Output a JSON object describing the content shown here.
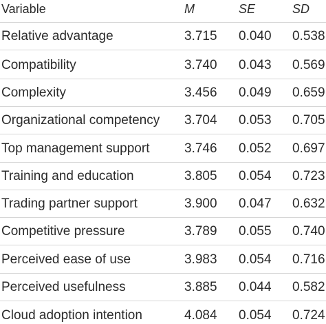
{
  "table": {
    "headers": {
      "variable": "Variable",
      "m": "M",
      "se": "SE",
      "sd": "SD"
    },
    "rows": [
      {
        "variable": "Relative advantage",
        "m": "3.715",
        "se": "0.040",
        "sd": "0.538"
      },
      {
        "variable": "Compatibility",
        "m": "3.740",
        "se": "0.043",
        "sd": "0.569"
      },
      {
        "variable": "Complexity",
        "m": "3.456",
        "se": "0.049",
        "sd": "0.659"
      },
      {
        "variable": "Organizational competency",
        "m": "3.704",
        "se": "0.053",
        "sd": "0.705"
      },
      {
        "variable": "Top management support",
        "m": "3.746",
        "se": "0.052",
        "sd": "0.697"
      },
      {
        "variable": "Training and education",
        "m": "3.805",
        "se": "0.054",
        "sd": "0.723"
      },
      {
        "variable": "Trading partner support",
        "m": "3.900",
        "se": "0.047",
        "sd": "0.632"
      },
      {
        "variable": "Competitive pressure",
        "m": "3.789",
        "se": "0.055",
        "sd": "0.740"
      },
      {
        "variable": "Perceived ease of use",
        "m": "3.983",
        "se": "0.054",
        "sd": "0.716"
      },
      {
        "variable": "Perceived usefulness",
        "m": "3.885",
        "se": "0.044",
        "sd": "0.582"
      },
      {
        "variable": "Cloud adoption intention",
        "m": "4.084",
        "se": "0.054",
        "sd": "0.724"
      }
    ]
  }
}
